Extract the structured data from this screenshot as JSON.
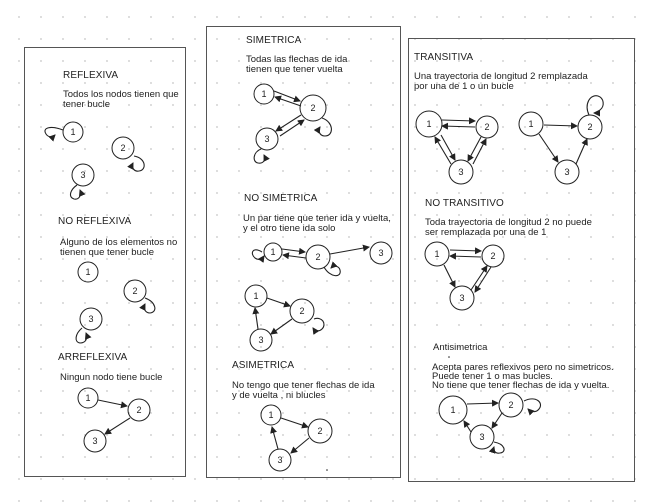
{
  "panels": {
    "left": {
      "reflexiva": {
        "title": "REFLEXIVA",
        "line1": "Todos los nodos tienen que",
        "line2": "tener bucle"
      },
      "no_reflexiva": {
        "title": "NO REFLEXIVA",
        "line1": "Alguno de los elementos no",
        "line2": "tienen que tener bucle"
      },
      "arreflexiva": {
        "title": "ARREFLEXIVA",
        "line1": "Ningun nodo tiene bucle"
      }
    },
    "middle": {
      "simetrica": {
        "title": "SIMETRICA",
        "line1": "Todas las flechas de ida",
        "line2": "tienen que tener vuelta"
      },
      "no_simetrica": {
        "title": "NO SIMETRICA",
        "line1": "Un  par tiene que tener ida y vuelta,",
        "line2": "y el otro tiene ida solo"
      },
      "asimetrica": {
        "title": "ASIMETRICA",
        "line1": "No tengo que tener flechas de ida",
        "line2": " y de vuelta , ni blucles"
      }
    },
    "right": {
      "transitiva": {
        "title": "TRANSITIVA",
        "line1": "Una trayectoria de longitud 2 remplazada",
        "line2": "por una de 1 o un bucle"
      },
      "no_transitivo": {
        "title": "NO TRANSITIVO",
        "line1": "Toda trayectoria de longitud 2 no puede",
        "line2": "ser remplazada por una de 1"
      },
      "antisimetrica": {
        "title": "Antisimetrica",
        "line1": "Acepta pares reflexivos pero no simetricos.",
        "line2": "Puede tener 1 o mas bucles.",
        "line3": "No tiene que tener flechas de ida y vuelta."
      }
    }
  },
  "node_labels": {
    "n1": "1",
    "n2": "2",
    "n3": "3"
  }
}
